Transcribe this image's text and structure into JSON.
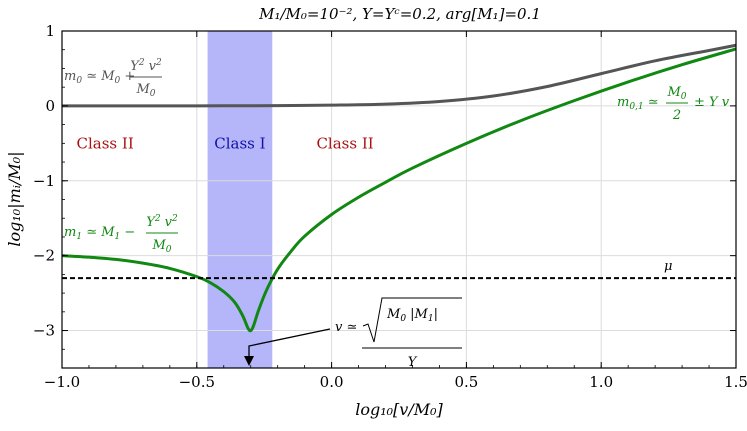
{
  "chart_data": {
    "type": "line",
    "title": "M₁/M₀=10⁻², Y=Yᶜ=0.2, arg[M₁]=0.1",
    "xlabel": "log₁₀[v/M₀]",
    "ylabel": "log₁₀|mᵢ/M₀|",
    "xlim": [
      -1.0,
      1.5
    ],
    "ylim": [
      -3.5,
      1.0
    ],
    "x_ticks": [
      -1.0,
      -0.5,
      0.0,
      0.5,
      1.0,
      1.5
    ],
    "x_tick_labels": [
      "−1.0",
      "−0.5",
      "0.0",
      "0.5",
      "1.0",
      "1.5"
    ],
    "y_ticks": [
      1,
      0,
      -1,
      -2,
      -3
    ],
    "y_tick_labels": [
      "1",
      "0",
      "−1",
      "−2",
      "−3"
    ],
    "grid": true,
    "series": [
      {
        "color": "#555555",
        "x": [
          -1.0,
          -0.8,
          -0.6,
          -0.4,
          -0.2,
          0.0,
          0.2,
          0.4,
          0.6,
          0.8,
          1.0,
          1.2,
          1.4,
          1.5
        ],
        "values": [
          0.0,
          0.0,
          0.0,
          0.001,
          0.003,
          0.01,
          0.024,
          0.059,
          0.132,
          0.259,
          0.431,
          0.602,
          0.74,
          0.81
        ]
      },
      {
        "color": "#118811",
        "x": [
          -1.0,
          -0.9,
          -0.8,
          -0.7,
          -0.6,
          -0.5,
          -0.45,
          -0.4,
          -0.36,
          -0.33,
          -0.31,
          -0.3,
          -0.29,
          -0.27,
          -0.24,
          -0.2,
          -0.15,
          -0.1,
          0.0,
          0.1,
          0.2,
          0.3,
          0.5,
          0.7,
          0.9,
          1.1,
          1.3,
          1.5
        ],
        "values": [
          -2.0,
          -2.02,
          -2.05,
          -2.1,
          -2.17,
          -2.28,
          -2.36,
          -2.48,
          -2.62,
          -2.8,
          -2.97,
          -3.0,
          -2.94,
          -2.72,
          -2.45,
          -2.18,
          -1.94,
          -1.74,
          -1.45,
          -1.22,
          -1.02,
          -0.83,
          -0.5,
          -0.2,
          0.07,
          0.32,
          0.55,
          0.76
        ]
      },
      {
        "color": "#000000",
        "style": "dashed",
        "x": [
          -1.0,
          1.5
        ],
        "values": [
          -2.3,
          -2.3
        ]
      }
    ],
    "band": {
      "x_range": [
        -0.46,
        -0.22
      ],
      "color": "#a8a8f8"
    },
    "region_labels": [
      {
        "text": "Class II",
        "x": -0.84,
        "y": -0.5,
        "color": "#aa1111"
      },
      {
        "text": "Class I",
        "x": -0.34,
        "y": -0.5,
        "color": "#1111aa"
      },
      {
        "text": "Class II",
        "x": 0.05,
        "y": -0.5,
        "color": "#aa1111"
      }
    ],
    "annotations": {
      "m0": "m₀ ≃ M₀ + Y² v² / M₀",
      "m01": "m₀,₁ ≃ M₀/2 ± Y v",
      "m1": "m₁ ≃ M₁ − Y² v² / M₀",
      "mu": "μ",
      "v": "v ≃ √(M₀ |M₁|) / Y"
    }
  }
}
